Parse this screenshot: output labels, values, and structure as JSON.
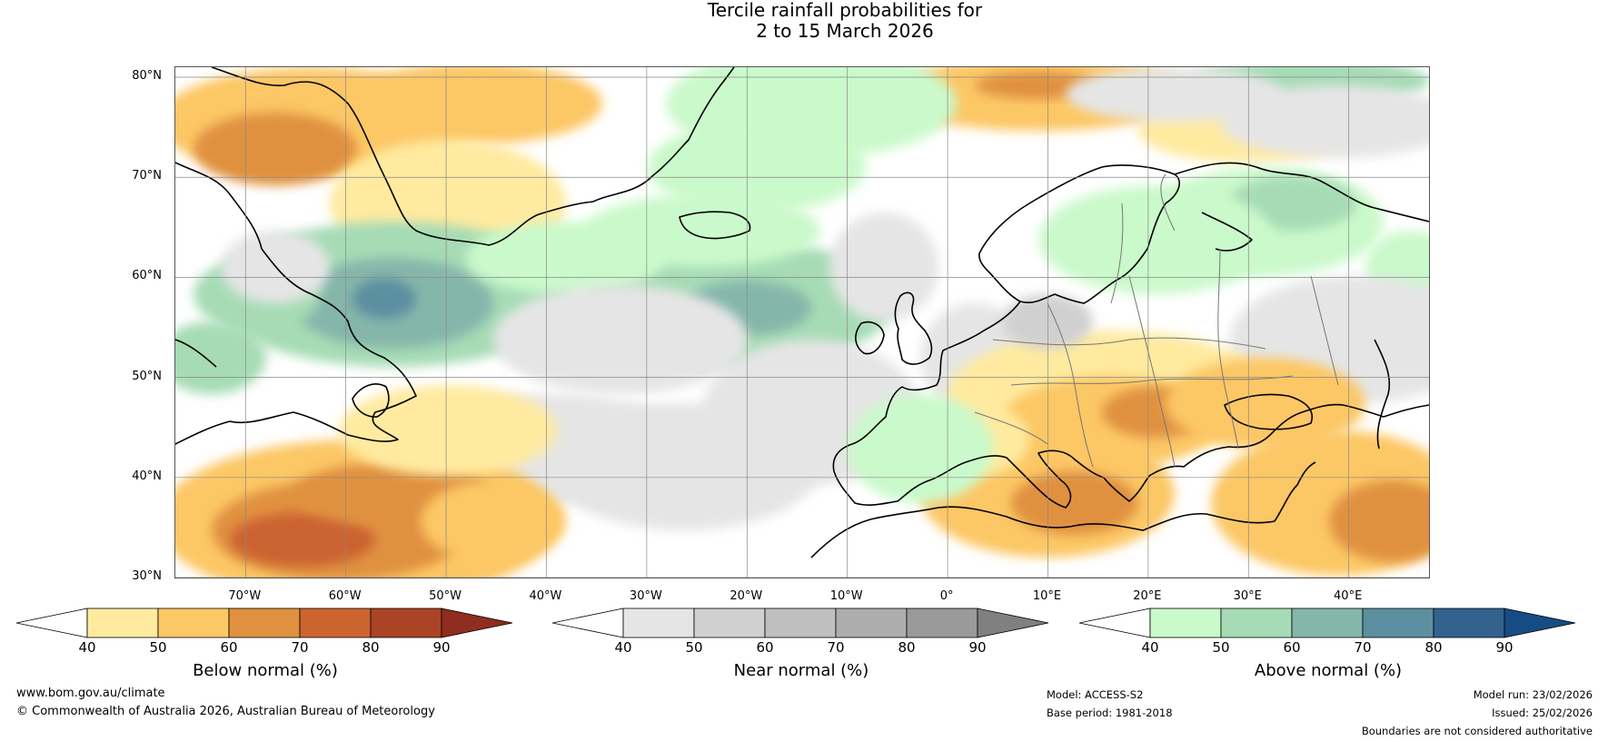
{
  "title": "Tercile rainfall probabilities for\n2 to 15 March 2026",
  "map": {
    "lat_labels": [
      "80°N",
      "70°N",
      "60°N",
      "50°N",
      "40°N",
      "30°N"
    ],
    "lon_labels": [
      "70°W",
      "60°W",
      "50°W",
      "40°W",
      "30°W",
      "20°W",
      "10°W",
      "0°",
      "10°E",
      "20°E",
      "30°E",
      "40°E"
    ],
    "lat_values": [
      80,
      70,
      60,
      50,
      40,
      30
    ],
    "lon_values": [
      -70,
      -60,
      -50,
      -40,
      -30,
      -20,
      -10,
      0,
      10,
      20,
      30,
      40
    ],
    "extent": {
      "lon_min": -77,
      "lon_max": 48,
      "lat_min": 30,
      "lat_max": 81
    },
    "category_colors": {
      "below": [
        "#ffeaa0",
        "#fcc765",
        "#e0913f",
        "#cc6430",
        "#aa4425",
        "#8f2d1e"
      ],
      "near": [
        "#e5e5e5",
        "#d0d0d0",
        "#bfbfbf",
        "#adadad",
        "#9a9a9a",
        "#808080"
      ],
      "above": [
        "#caf9cb",
        "#a6dbb5",
        "#85b6aa",
        "#5c8fa0",
        "#33628e",
        "#164c84"
      ]
    }
  },
  "colorbars": [
    {
      "label": "Below normal (%)",
      "ticks": [
        "40",
        "50",
        "60",
        "70",
        "80",
        "90"
      ],
      "colors": [
        "#ffeaa0",
        "#fcc765",
        "#e0913f",
        "#cc6430",
        "#aa4425"
      ],
      "extend_color": "#8f2d1e"
    },
    {
      "label": "Near normal (%)",
      "ticks": [
        "40",
        "50",
        "60",
        "70",
        "80",
        "90"
      ],
      "colors": [
        "#e5e5e5",
        "#d0d0d0",
        "#bfbfbf",
        "#adadad",
        "#9a9a9a"
      ],
      "extend_color": "#808080"
    },
    {
      "label": "Above normal (%)",
      "ticks": [
        "40",
        "50",
        "60",
        "70",
        "80",
        "90"
      ],
      "colors": [
        "#caf9cb",
        "#a6dbb5",
        "#85b6aa",
        "#5c8fa0",
        "#33628e"
      ],
      "extend_color": "#164c84"
    }
  ],
  "footer": {
    "website": "www.bom.gov.au/climate",
    "copyright": "© Commonwealth of Australia 2026, Australian Bureau of Meteorology",
    "model": "Model: ACCESS-S2",
    "base_period": "Base period: 1981-2018",
    "model_run": "Model run: 23/02/2026",
    "issued": "Issued: 25/02/2026",
    "disclaimer": "Boundaries are not considered authoritative"
  }
}
